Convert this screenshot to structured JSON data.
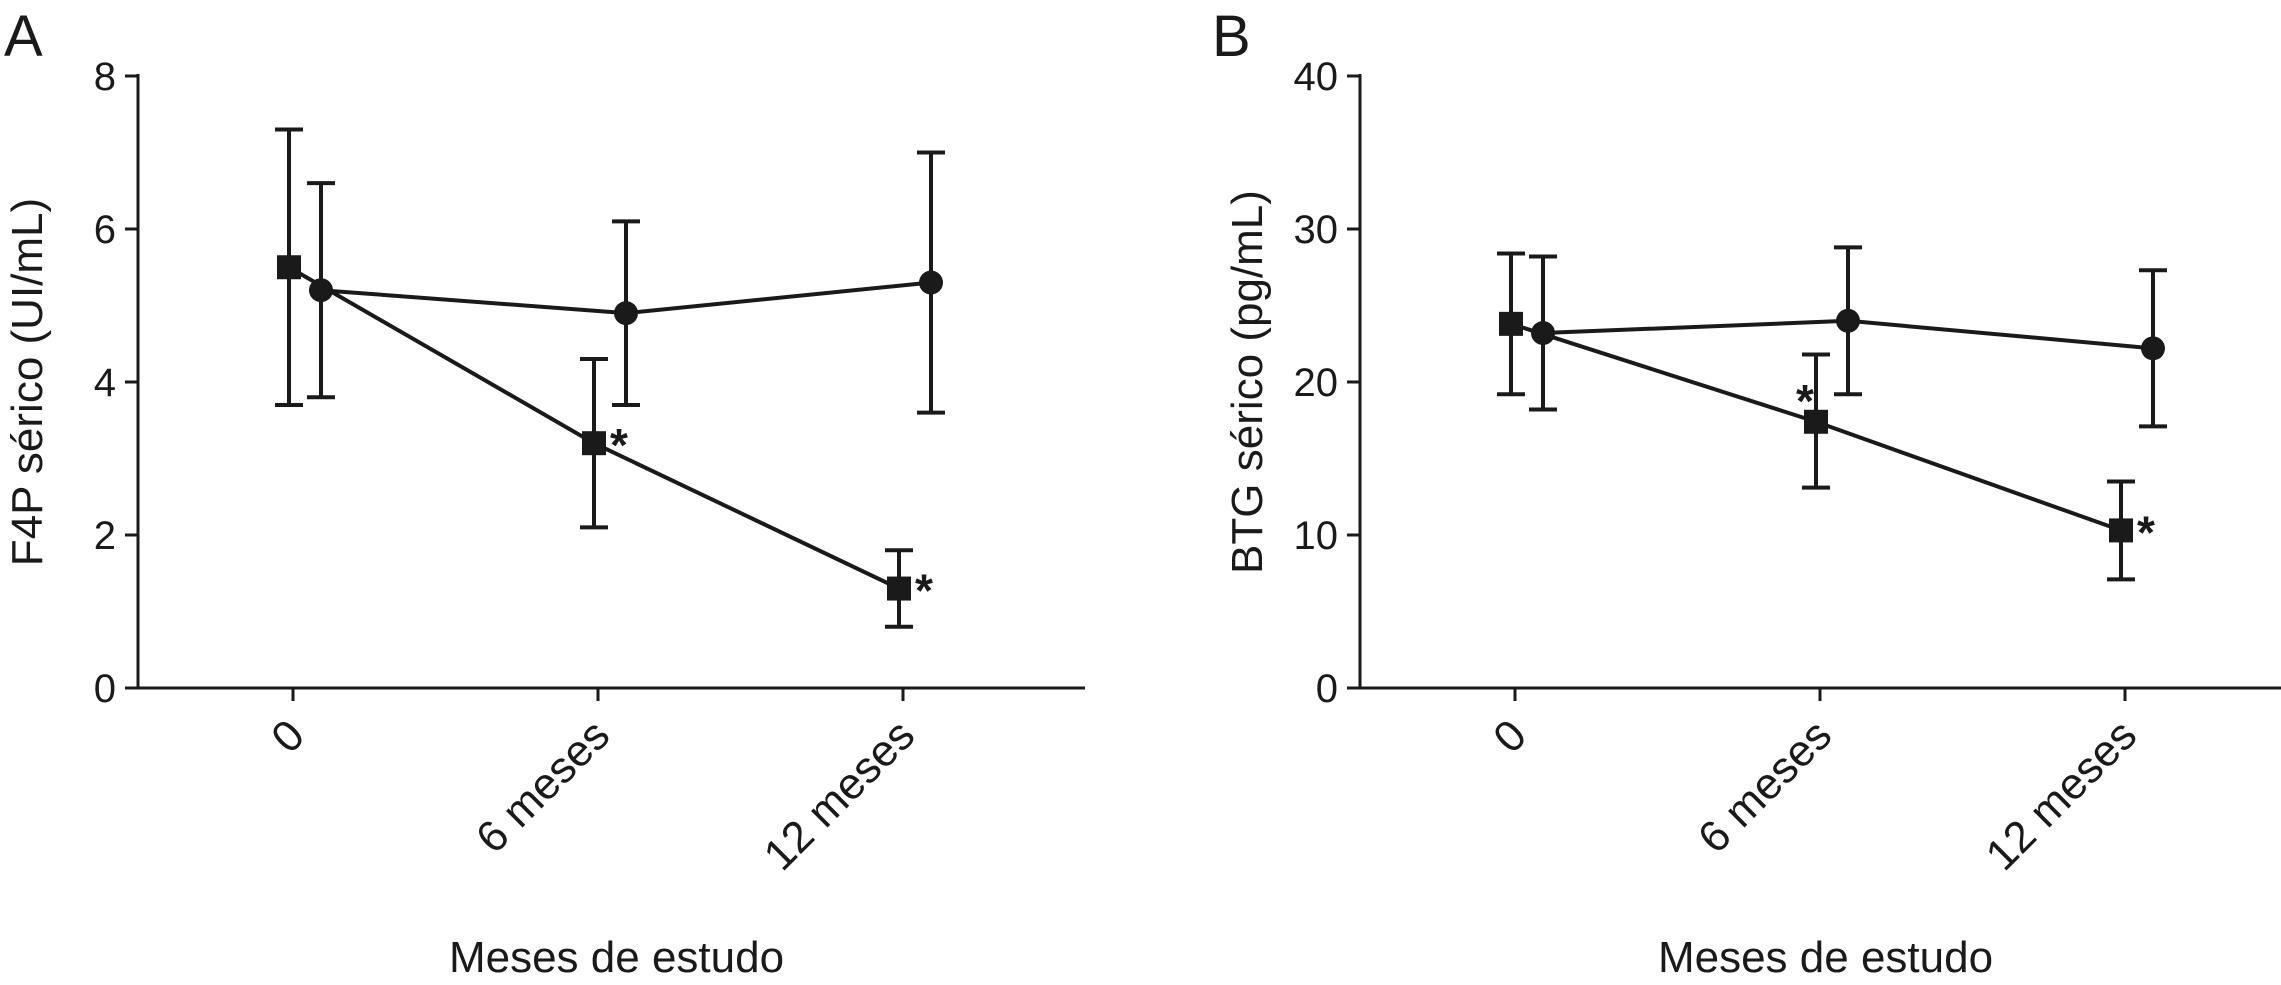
{
  "chart_data": [
    {
      "type": "line",
      "panel_label": "A",
      "xlabel": "Meses de estudo",
      "ylabel": "F4P sérico (UI/mL)",
      "categories": [
        "0",
        "6 meses",
        "12 meses"
      ],
      "ylim": [
        0,
        8
      ],
      "yticks": [
        "0",
        "2",
        "4",
        "6",
        "8"
      ],
      "grid": false,
      "series": [
        {
          "marker": "square",
          "values": [
            5.5,
            3.2,
            1.3
          ],
          "errors": [
            [
              3.7,
              7.3
            ],
            [
              2.1,
              4.3
            ],
            [
              0.8,
              1.8
            ]
          ],
          "annotations": [
            "",
            "*",
            "*"
          ]
        },
        {
          "marker": "circle",
          "values": [
            5.2,
            4.9,
            5.3
          ],
          "errors": [
            [
              3.8,
              6.6
            ],
            [
              3.7,
              6.1
            ],
            [
              3.6,
              7.0
            ]
          ],
          "annotations": [
            "",
            "",
            ""
          ]
        }
      ]
    },
    {
      "type": "line",
      "panel_label": "B",
      "xlabel": "Meses de estudo",
      "ylabel": "BTG sérico (pg/mL)",
      "categories": [
        "0",
        "6 meses",
        "12 meses"
      ],
      "ylim": [
        0,
        40
      ],
      "yticks": [
        "0",
        "10",
        "20",
        "30",
        "40"
      ],
      "grid": false,
      "series": [
        {
          "marker": "square",
          "values": [
            23.8,
            17.4,
            10.3
          ],
          "errors": [
            [
              19.2,
              28.4
            ],
            [
              13.1,
              21.8
            ],
            [
              7.1,
              13.5
            ]
          ],
          "annotations": [
            "",
            "*",
            "*"
          ]
        },
        {
          "marker": "circle",
          "values": [
            23.2,
            24.0,
            22.2
          ],
          "errors": [
            [
              18.2,
              28.2
            ],
            [
              19.2,
              28.8
            ],
            [
              17.1,
              27.3
            ]
          ],
          "annotations": [
            "",
            "",
            ""
          ]
        }
      ]
    }
  ]
}
